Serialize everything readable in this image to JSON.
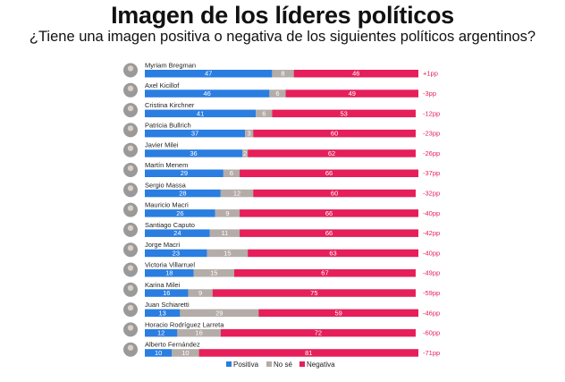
{
  "title": "Imagen de los líderes políticos",
  "subtitle": "¿Tiene una imagen positiva o negativa de los siguientes políticos argentinos?",
  "colors": {
    "positiva": "#2a7de1",
    "no_se": "#b4aca8",
    "negativa": "#e61e5a",
    "diff": "#e61e5a",
    "avatar": "#9a9a9a"
  },
  "chart_data": {
    "type": "bar",
    "stacked": true,
    "orientation": "horizontal",
    "categories": [
      "Myriam Bregman",
      "Axel Kicillof",
      "Cristina Kirchner",
      "Patricia Bullrich",
      "Javier Milei",
      "Martín Menem",
      "Sergio Massa",
      "Mauricio Macri",
      "Santiago Caputo",
      "Jorge Macri",
      "Victoria Villarruel",
      "Karina Milei",
      "Juan Schiaretti",
      "Horacio Rodríguez Larreta",
      "Alberto Fernández"
    ],
    "series": [
      {
        "name": "Positiva",
        "values": [
          47,
          46,
          41,
          37,
          36,
          29,
          28,
          26,
          24,
          23,
          18,
          16,
          13,
          12,
          10
        ]
      },
      {
        "name": "No sé",
        "values": [
          8,
          6,
          6,
          3,
          2,
          6,
          12,
          9,
          11,
          15,
          15,
          9,
          29,
          16,
          10
        ]
      },
      {
        "name": "Negativa",
        "values": [
          46,
          49,
          53,
          60,
          62,
          66,
          60,
          66,
          66,
          63,
          67,
          75,
          59,
          72,
          81
        ]
      }
    ],
    "differences": [
      "+1pp",
      "-3pp",
      "-12pp",
      "-23pp",
      "-26pp",
      "-37pp",
      "-32pp",
      "-40pp",
      "-42pp",
      "-40pp",
      "-49pp",
      "-59pp",
      "-46pp",
      "-60pp",
      "-71pp"
    ],
    "xlim": [
      0,
      101
    ],
    "legend_position": "bottom"
  }
}
